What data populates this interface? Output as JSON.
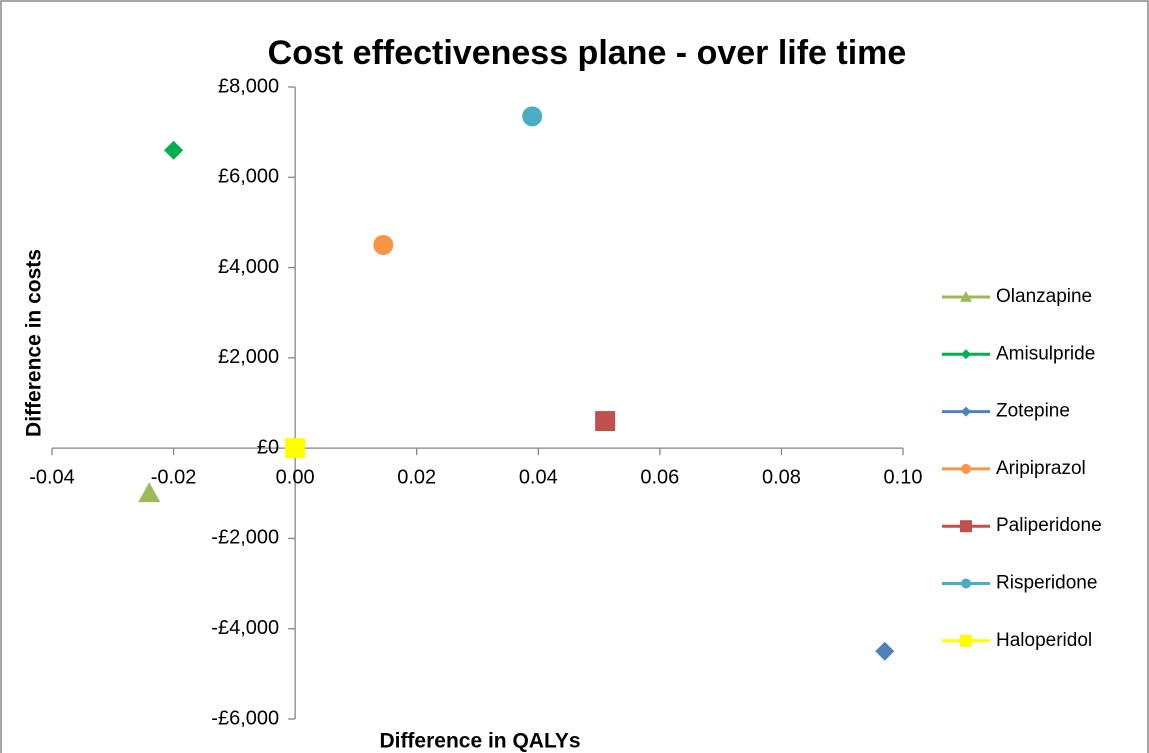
{
  "chart_data": {
    "type": "scatter",
    "title": "Cost effectiveness plane - over life time",
    "xlabel": "Difference in QALYs",
    "ylabel": "Difference in costs",
    "xlim": [
      -0.04,
      0.1
    ],
    "xticks": [
      -0.04,
      -0.02,
      {
        "value": 0,
        "label": "0.00"
      },
      0.02,
      0.04,
      0.06,
      0.08,
      {
        "value": 0.1,
        "label": "0.10"
      }
    ],
    "ylim": [
      -6000,
      8000
    ],
    "yticks": [
      {
        "value": -6000,
        "label": "-£6,000"
      },
      {
        "value": -4000,
        "label": "-£4,000"
      },
      {
        "value": -2000,
        "label": "-£2,000"
      },
      {
        "value": 0,
        "label": "£0"
      },
      {
        "value": 2000,
        "label": "£2,000"
      },
      {
        "value": 4000,
        "label": "£4,000"
      },
      {
        "value": 6000,
        "label": "£6,000"
      },
      {
        "value": 8000,
        "label": "£8,000"
      }
    ],
    "legend": "right",
    "series": [
      {
        "name": "Olanzapine",
        "color": "#9bbb59",
        "marker": "triangle",
        "x": [
          -0.024
        ],
        "values": [
          -1000
        ]
      },
      {
        "name": "Amisulpride",
        "color": "#00b050",
        "marker": "diamond",
        "x": [
          -0.02
        ],
        "values": [
          6600
        ]
      },
      {
        "name": "Zotepine",
        "color": "#4f81bd",
        "marker": "diamond",
        "x": [
          0.097
        ],
        "values": [
          -4500
        ]
      },
      {
        "name": "Aripiprazol",
        "color": "#f79646",
        "marker": "circle",
        "x": [
          0.0145
        ],
        "values": [
          4500
        ]
      },
      {
        "name": "Paliperidone",
        "color": "#c0504d",
        "marker": "square",
        "x": [
          0.051
        ],
        "values": [
          600
        ]
      },
      {
        "name": "Risperidone",
        "color": "#4bacc6",
        "marker": "circle",
        "x": [
          0.039
        ],
        "values": [
          7350
        ]
      },
      {
        "name": "Haloperidol",
        "color": "#ffff00",
        "marker": "square",
        "x": [
          0
        ],
        "values": [
          0
        ]
      }
    ]
  }
}
